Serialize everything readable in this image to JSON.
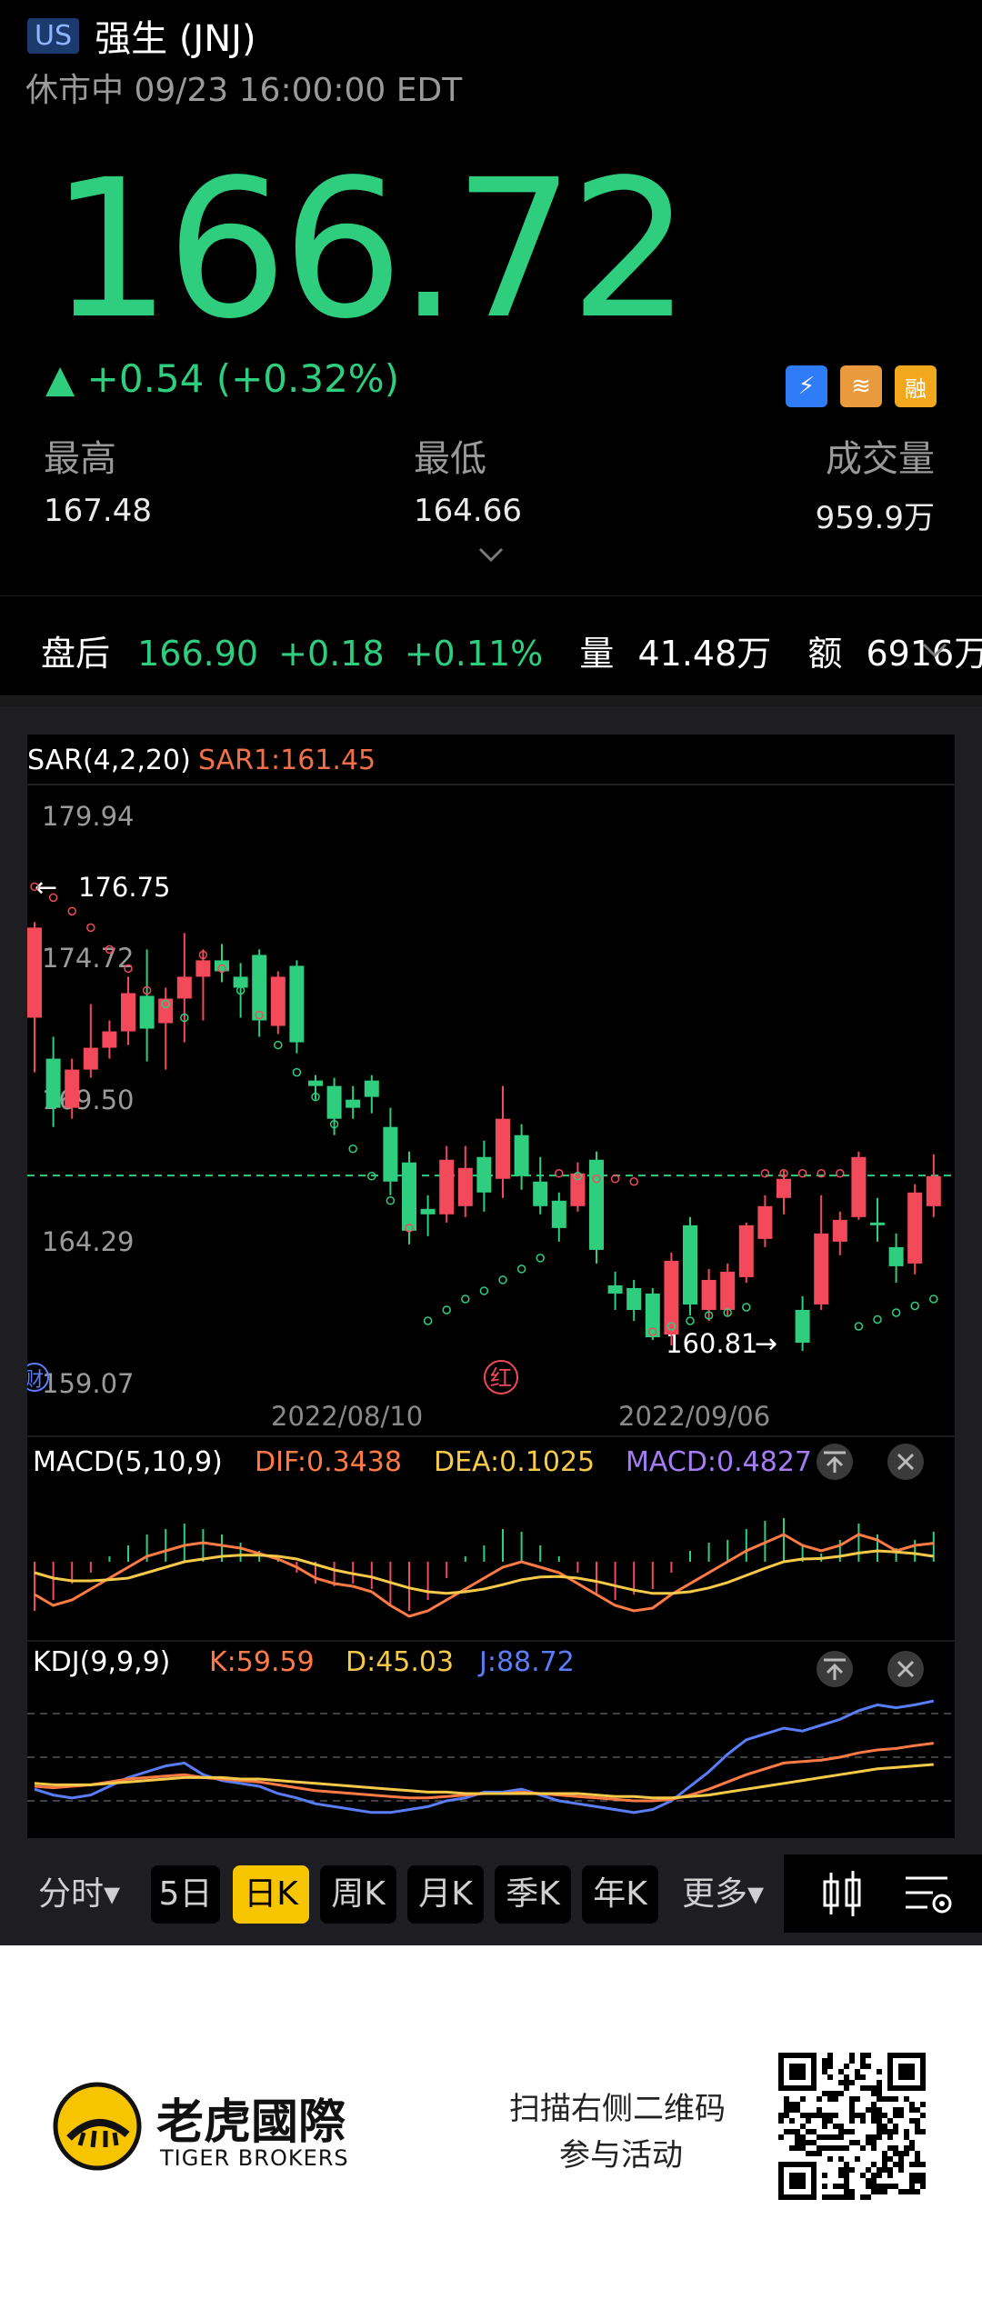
{
  "header": {
    "market": "US",
    "title": "强生 (JNJ)",
    "status": "休市中 09/23 16:00:00 EDT"
  },
  "quote": {
    "price": "166.72",
    "change": "▲ +0.54 (+0.32%)",
    "badges": [
      "⚡",
      "≋",
      "融"
    ],
    "high_label": "最高",
    "high_value": "167.48",
    "low_label": "最低",
    "low_value": "164.66",
    "volume_label": "成交量",
    "volume_value": "959.9万"
  },
  "after_hours": {
    "label": "盘后",
    "price": "166.90",
    "change": "+0.18",
    "percent": "+0.11%",
    "volume_label": "量",
    "volume_value": "41.48万",
    "amount_label": "额",
    "amount_value": "6916万"
  },
  "chart_data": {
    "type": "candlestick",
    "main": {
      "indicator": "SAR(4,2,20)",
      "sar1_label": "SAR1:161.45",
      "y_ticks": [
        "179.94",
        "174.72",
        "169.50",
        "164.29",
        "159.07"
      ],
      "ylim": [
        159.07,
        179.94
      ],
      "x_ticks": [
        "2022/08/10",
        "2022/09/06"
      ],
      "annotations": {
        "high": "176.75",
        "low": "160.81",
        "left_marker": "财",
        "mid_marker": "红"
      },
      "current_price_line": 166.72,
      "candles": [
        [
          172.5,
          175.8,
          170.5,
          176.0
        ],
        [
          171.0,
          169.2,
          168.5,
          171.8
        ],
        [
          169.2,
          170.6,
          168.8,
          171.0
        ],
        [
          170.6,
          171.4,
          170.3,
          173.0
        ],
        [
          171.4,
          172.0,
          171.0,
          172.4
        ],
        [
          172.0,
          173.4,
          171.5,
          174.0
        ],
        [
          173.3,
          172.1,
          170.9,
          175.0
        ],
        [
          172.3,
          173.2,
          170.6,
          173.6
        ],
        [
          173.2,
          174.0,
          171.6,
          175.6
        ],
        [
          174.0,
          174.6,
          172.4,
          175.0
        ],
        [
          174.6,
          174.2,
          173.8,
          175.2
        ],
        [
          174.0,
          173.6,
          172.5,
          174.5
        ],
        [
          174.8,
          172.4,
          171.8,
          175.0
        ],
        [
          172.2,
          174.0,
          171.9,
          174.2
        ],
        [
          174.4,
          171.6,
          171.2,
          174.6
        ],
        [
          170.2,
          170.0,
          169.5,
          170.4
        ],
        [
          170.0,
          168.8,
          168.2,
          170.3
        ],
        [
          169.5,
          169.2,
          168.8,
          170.0
        ],
        [
          170.2,
          169.6,
          169.0,
          170.4
        ],
        [
          168.5,
          166.5,
          166.0,
          169.2
        ],
        [
          167.2,
          164.7,
          164.2,
          167.6
        ],
        [
          165.5,
          165.3,
          164.5,
          166.0
        ],
        [
          165.3,
          167.3,
          165.0,
          167.8
        ],
        [
          165.6,
          167.0,
          165.2,
          167.8
        ],
        [
          167.4,
          166.1,
          165.4,
          168.0
        ],
        [
          166.6,
          168.8,
          165.9,
          170.0
        ],
        [
          168.2,
          166.7,
          166.2,
          168.6
        ],
        [
          166.5,
          165.6,
          165.3,
          167.4
        ],
        [
          165.8,
          164.8,
          164.3,
          166.1
        ],
        [
          165.6,
          166.8,
          165.4,
          167.2
        ],
        [
          167.3,
          164.0,
          163.5,
          167.6
        ],
        [
          162.7,
          162.4,
          161.8,
          163.2
        ],
        [
          162.6,
          161.8,
          161.4,
          162.9
        ],
        [
          162.4,
          160.8,
          160.7,
          162.6
        ],
        [
          160.9,
          163.6,
          160.5,
          163.9
        ],
        [
          164.9,
          162.0,
          161.6,
          165.2
        ],
        [
          161.8,
          162.9,
          161.4,
          163.3
        ],
        [
          161.8,
          163.2,
          161.6,
          163.5
        ],
        [
          163.0,
          164.9,
          162.8,
          165.0
        ],
        [
          164.4,
          165.6,
          164.1,
          166.0
        ],
        [
          165.9,
          166.6,
          165.3,
          166.9
        ],
        [
          161.8,
          160.6,
          160.3,
          162.3
        ],
        [
          162.0,
          164.6,
          161.8,
          166.0
        ],
        [
          164.3,
          165.1,
          163.8,
          165.4
        ],
        [
          165.2,
          167.4,
          165.1,
          167.6
        ],
        [
          165.0,
          164.9,
          164.3,
          165.9
        ],
        [
          164.1,
          163.4,
          162.8,
          164.6
        ],
        [
          163.5,
          166.1,
          163.1,
          166.4
        ],
        [
          165.6,
          166.7,
          165.2,
          167.5
        ]
      ],
      "sar": [
        [
          177.3,
          0
        ],
        [
          176.9,
          1
        ],
        [
          176.4,
          2
        ],
        [
          175.8,
          3
        ],
        [
          175.0,
          4
        ],
        [
          174.3,
          5
        ],
        [
          173.5,
          6
        ],
        [
          173.0,
          7
        ],
        [
          172.5,
          8
        ],
        [
          174.8,
          9
        ],
        [
          174.3,
          10
        ],
        [
          173.5,
          11
        ],
        [
          172.6,
          12
        ],
        [
          171.5,
          13
        ],
        [
          170.5,
          14
        ],
        [
          169.6,
          15
        ],
        [
          168.6,
          16
        ],
        [
          167.7,
          17
        ],
        [
          166.7,
          18
        ],
        [
          165.8,
          19
        ],
        [
          164.8,
          20
        ],
        [
          161.4,
          21
        ],
        [
          161.8,
          22
        ],
        [
          162.2,
          23
        ],
        [
          162.5,
          24
        ],
        [
          162.9,
          25
        ],
        [
          163.3,
          26
        ],
        [
          163.7,
          27
        ],
        [
          166.8,
          28
        ],
        [
          166.7,
          29
        ],
        [
          166.6,
          30
        ],
        [
          166.6,
          31
        ],
        [
          166.5,
          32
        ],
        [
          161.0,
          33
        ],
        [
          161.2,
          34
        ],
        [
          161.4,
          35
        ],
        [
          161.6,
          36
        ],
        [
          161.7,
          37
        ],
        [
          161.9,
          38
        ]
      ]
    },
    "macd": {
      "label": "MACD(5,10,9)",
      "dif_label": "DIF:0.3438",
      "dea_label": "DEA:0.1025",
      "macd_label": "MACD:0.4827",
      "histogram": [
        -0.9,
        -0.7,
        -0.4,
        -0.2,
        0.1,
        0.3,
        0.5,
        0.6,
        0.7,
        0.6,
        0.5,
        0.35,
        0.2,
        0.05,
        -0.2,
        -0.4,
        -0.45,
        -0.4,
        -0.5,
        -0.8,
        -0.9,
        -0.7,
        -0.3,
        0.1,
        0.3,
        0.6,
        0.55,
        0.3,
        0.1,
        -0.2,
        -0.6,
        -0.7,
        -0.6,
        -0.5,
        -0.2,
        0.2,
        0.35,
        0.4,
        0.6,
        0.75,
        0.8,
        0.3,
        0.15,
        0.4,
        0.7,
        0.5,
        0.25,
        0.4,
        0.55
      ],
      "dif": [
        -0.6,
        -0.8,
        -0.7,
        -0.5,
        -0.3,
        -0.1,
        0.1,
        0.2,
        0.3,
        0.35,
        0.3,
        0.25,
        0.15,
        0.05,
        -0.1,
        -0.3,
        -0.4,
        -0.45,
        -0.55,
        -0.8,
        -1.0,
        -0.9,
        -0.7,
        -0.5,
        -0.3,
        -0.1,
        0.0,
        -0.1,
        -0.2,
        -0.4,
        -0.6,
        -0.8,
        -0.9,
        -0.85,
        -0.6,
        -0.4,
        -0.2,
        0.0,
        0.2,
        0.35,
        0.5,
        0.3,
        0.2,
        0.3,
        0.5,
        0.4,
        0.2,
        0.3,
        0.34
      ],
      "dea": [
        -0.2,
        -0.3,
        -0.35,
        -0.35,
        -0.33,
        -0.3,
        -0.2,
        -0.1,
        0.0,
        0.05,
        0.1,
        0.12,
        0.12,
        0.1,
        0.05,
        -0.05,
        -0.15,
        -0.22,
        -0.28,
        -0.38,
        -0.48,
        -0.55,
        -0.58,
        -0.55,
        -0.5,
        -0.42,
        -0.33,
        -0.28,
        -0.27,
        -0.3,
        -0.36,
        -0.44,
        -0.52,
        -0.58,
        -0.58,
        -0.55,
        -0.48,
        -0.38,
        -0.25,
        -0.12,
        0.0,
        0.05,
        0.06,
        0.1,
        0.16,
        0.2,
        0.18,
        0.15,
        0.1
      ]
    },
    "kdj": {
      "label": "KDJ(9,9,9)",
      "k_label": "K:59.59",
      "d_label": "D:45.03",
      "j_label": "J:88.72",
      "k": [
        30,
        29,
        30,
        31,
        33,
        35,
        36,
        37,
        38,
        36,
        35,
        34,
        33,
        31,
        29,
        27,
        26,
        25,
        24,
        23,
        22,
        22,
        23,
        24,
        25,
        25,
        26,
        25,
        24,
        23,
        22,
        21,
        20,
        20,
        21,
        24,
        28,
        33,
        38,
        42,
        46,
        47,
        48,
        50,
        53,
        55,
        56,
        58,
        59.6
      ],
      "d": [
        32,
        31,
        31,
        31,
        32,
        33,
        34,
        35,
        36,
        36,
        36,
        35,
        35,
        34,
        33,
        32,
        31,
        30,
        29,
        28,
        27,
        26,
        26,
        25,
        25,
        25,
        25,
        25,
        25,
        25,
        24,
        23,
        23,
        22,
        22,
        23,
        24,
        26,
        28,
        30,
        32,
        34,
        36,
        38,
        40,
        42,
        43,
        44,
        45
      ],
      "j": [
        28,
        24,
        22,
        24,
        30,
        36,
        40,
        44,
        46,
        38,
        34,
        32,
        30,
        25,
        22,
        18,
        16,
        14,
        12,
        12,
        14,
        16,
        20,
        22,
        26,
        26,
        28,
        24,
        20,
        18,
        16,
        14,
        12,
        14,
        20,
        30,
        40,
        52,
        62,
        66,
        70,
        68,
        72,
        76,
        82,
        86,
        84,
        86,
        88.7
      ]
    }
  },
  "timeframes": {
    "items": [
      "分时▾",
      "5日",
      "日K",
      "周K",
      "月K",
      "季K",
      "年K",
      "更多▾"
    ],
    "active": "日K"
  },
  "footer": {
    "brand_cn": "老虎國際",
    "brand_en": "TIGER BROKERS",
    "promo_line1": "扫描右侧二维码",
    "promo_line2": "参与活动"
  },
  "colors": {
    "up": "#f24a5a",
    "down": "#2fce7f",
    "accent": "#f7c500",
    "dif": "#ff7a45",
    "dea": "#f7c948",
    "macd": "#a57cf5",
    "kdj_j": "#5a7dfa",
    "sar": "#f24a5a"
  }
}
